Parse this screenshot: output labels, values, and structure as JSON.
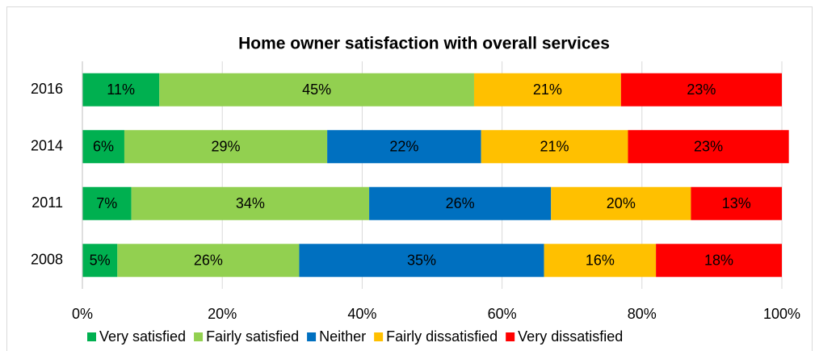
{
  "chart_data": {
    "type": "stacked-bar-horizontal",
    "title": "Home owner satisfaction with overall services",
    "categories": [
      "2016",
      "2014",
      "2011",
      "2008"
    ],
    "series": [
      {
        "name": "Very satisfied",
        "color": "#00b050",
        "values": [
          11,
          6,
          7,
          5
        ],
        "value_labels": [
          "11%",
          "6%",
          "7%",
          "5%"
        ]
      },
      {
        "name": "Fairly satisfied",
        "color": "#92d050",
        "values": [
          45,
          29,
          34,
          26
        ],
        "value_labels": [
          "45%",
          "29%",
          "34%",
          "26%"
        ]
      },
      {
        "name": "Neither",
        "color": "#0070c0",
        "values": [
          null,
          22,
          26,
          35
        ],
        "value_labels": [
          null,
          "22%",
          "26%",
          "35%"
        ]
      },
      {
        "name": "Fairly dissatisfied",
        "color": "#ffc000",
        "values": [
          21,
          21,
          20,
          16
        ],
        "value_labels": [
          "21%",
          "21%",
          "20%",
          "16%"
        ]
      },
      {
        "name": "Very dissatisfied",
        "color": "#ff0000",
        "values": [
          23,
          23,
          13,
          18
        ],
        "value_labels": [
          "23%",
          "23%",
          "13%",
          "18%"
        ]
      }
    ],
    "xlim": [
      0,
      100
    ],
    "xticks": [
      {
        "value": 0,
        "label": "0%"
      },
      {
        "value": 20,
        "label": "20%"
      },
      {
        "value": 40,
        "label": "40%"
      },
      {
        "value": 60,
        "label": "60%"
      },
      {
        "value": 80,
        "label": "80%"
      },
      {
        "value": 100,
        "label": "100%"
      }
    ],
    "grid": true,
    "legend": "bottom"
  }
}
